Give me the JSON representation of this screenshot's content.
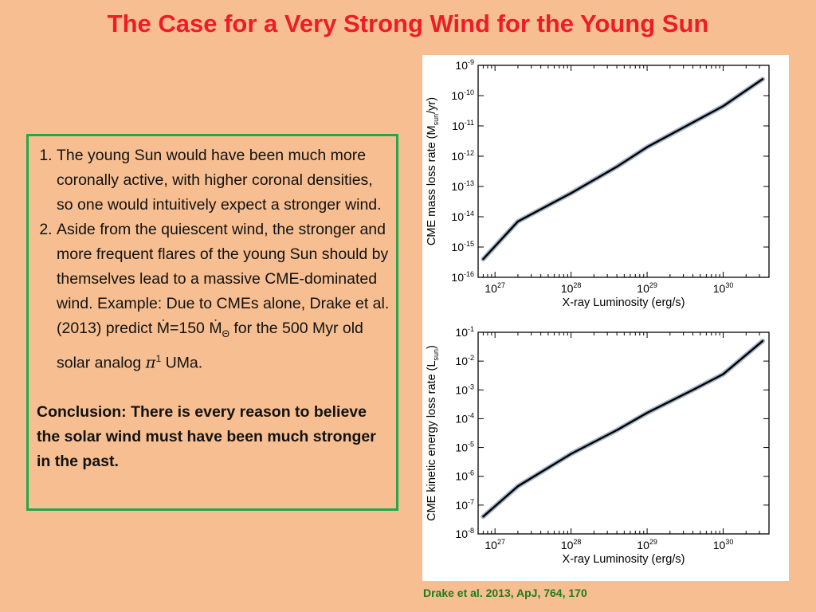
{
  "slide": {
    "title": "The Case for a Very Strong Wind for the Young Sun",
    "points": [
      "The young Sun would have been much more coronally active, with higher coronal densities, so one would intuitively expect a stronger wind.",
      "Aside from the quiescent wind, the stronger and more frequent flares of the young Sun should by themselves lead to a massive CME-dominated wind. Example:  Due to CMEs alone, Drake et al. (2013) predict Ṁ=150 Ṁ"
    ],
    "point2_sub": "Θ",
    "point2_tail_a": " for the 500 Myr old solar analog ",
    "point2_pi": "π",
    "point2_sup": "1",
    "point2_tail_b": " UMa.",
    "conclusion": "Conclusion:  There is every reason to believe the solar wind must have been much stronger in the past.",
    "citation": "Drake et al. 2013, ApJ, 764, 170"
  },
  "colors": {
    "title": "#ee1c24",
    "box_border": "#22a84a",
    "citation": "#1f7a1a",
    "background": "#f7bf91"
  },
  "chart_data": [
    {
      "type": "line",
      "xscale": "log",
      "yscale": "log",
      "xlabel": "X-ray Luminosity (erg/s)",
      "ylabel_main": "CME mass loss rate (M",
      "ylabel_sub": "sun",
      "ylabel_end": "/yr)",
      "xlim": [
        6e+26,
        4e+30
      ],
      "ylim": [
        1e-16,
        1e-09
      ],
      "x_ticks": [
        {
          "base": "10",
          "exp": "27"
        },
        {
          "base": "10",
          "exp": "28"
        },
        {
          "base": "10",
          "exp": "29"
        },
        {
          "base": "10",
          "exp": "30"
        }
      ],
      "y_ticks": [
        {
          "base": "10",
          "exp": "-9"
        },
        {
          "base": "10",
          "exp": "-10"
        },
        {
          "base": "10",
          "exp": "-11"
        },
        {
          "base": "10",
          "exp": "-12"
        },
        {
          "base": "10",
          "exp": "-13"
        },
        {
          "base": "10",
          "exp": "-14"
        },
        {
          "base": "10",
          "exp": "-15"
        },
        {
          "base": "10",
          "exp": "-16"
        }
      ],
      "series": [
        {
          "x": [
            7e+26,
            2e+27,
            1e+28,
            4e+28,
            1e+29,
            4e+29,
            1e+30,
            3.3e+30
          ],
          "y": [
            4e-16,
            7e-15,
            6e-14,
            4.5e-13,
            2e-12,
            1.3e-11,
            4.5e-11,
            3.5e-10
          ]
        }
      ]
    },
    {
      "type": "line",
      "xscale": "log",
      "yscale": "log",
      "xlabel": "X-ray Luminosity (erg/s)",
      "ylabel_main": "CME kinetic energy loss rate (L",
      "ylabel_sub": "sun",
      "ylabel_end": ")",
      "xlim": [
        6e+26,
        4e+30
      ],
      "ylim": [
        1e-08,
        0.1
      ],
      "x_ticks": [
        {
          "base": "10",
          "exp": "27"
        },
        {
          "base": "10",
          "exp": "28"
        },
        {
          "base": "10",
          "exp": "29"
        },
        {
          "base": "10",
          "exp": "30"
        }
      ],
      "y_ticks": [
        {
          "base": "10",
          "exp": "-1"
        },
        {
          "base": "10",
          "exp": "-2"
        },
        {
          "base": "10",
          "exp": "-3"
        },
        {
          "base": "10",
          "exp": "-4"
        },
        {
          "base": "10",
          "exp": "-5"
        },
        {
          "base": "10",
          "exp": "-6"
        },
        {
          "base": "10",
          "exp": "-7"
        },
        {
          "base": "10",
          "exp": "-8"
        }
      ],
      "series": [
        {
          "x": [
            7e+26,
            2e+27,
            1e+28,
            4e+28,
            1e+29,
            4e+29,
            1e+30,
            3.3e+30
          ],
          "y": [
            4e-08,
            4.5e-07,
            6e-06,
            4e-05,
            0.00016,
            0.001,
            0.0035,
            0.05
          ]
        }
      ]
    }
  ]
}
